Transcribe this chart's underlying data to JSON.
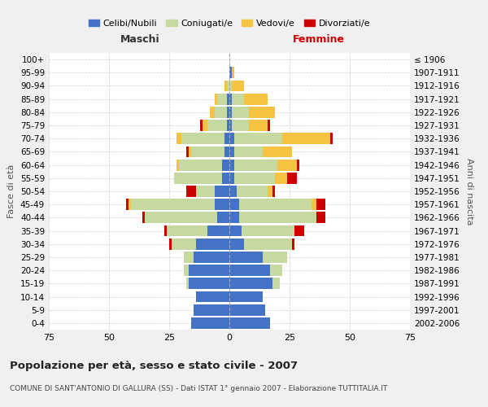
{
  "age_groups": [
    "0-4",
    "5-9",
    "10-14",
    "15-19",
    "20-24",
    "25-29",
    "30-34",
    "35-39",
    "40-44",
    "45-49",
    "50-54",
    "55-59",
    "60-64",
    "65-69",
    "70-74",
    "75-79",
    "80-84",
    "85-89",
    "90-94",
    "95-99",
    "100+"
  ],
  "birth_years": [
    "2002-2006",
    "1997-2001",
    "1992-1996",
    "1987-1991",
    "1982-1986",
    "1977-1981",
    "1972-1976",
    "1967-1971",
    "1962-1966",
    "1957-1961",
    "1952-1956",
    "1947-1951",
    "1942-1946",
    "1937-1941",
    "1932-1936",
    "1927-1931",
    "1922-1926",
    "1917-1921",
    "1912-1916",
    "1907-1911",
    "≤ 1906"
  ],
  "male": {
    "celibi": [
      16,
      15,
      14,
      17,
      17,
      15,
      14,
      9,
      5,
      6,
      6,
      3,
      3,
      2,
      2,
      1,
      1,
      1,
      0,
      0,
      0
    ],
    "coniugati": [
      0,
      0,
      0,
      1,
      2,
      4,
      10,
      17,
      30,
      35,
      8,
      20,
      18,
      14,
      18,
      8,
      5,
      4,
      1,
      0,
      0
    ],
    "vedovi": [
      0,
      0,
      0,
      0,
      0,
      0,
      0,
      0,
      0,
      1,
      0,
      0,
      1,
      1,
      2,
      2,
      2,
      1,
      1,
      0,
      0
    ],
    "divorziati": [
      0,
      0,
      0,
      0,
      0,
      0,
      1,
      1,
      1,
      1,
      4,
      0,
      0,
      1,
      0,
      1,
      0,
      0,
      0,
      0,
      0
    ]
  },
  "female": {
    "nubili": [
      17,
      15,
      14,
      18,
      17,
      14,
      6,
      5,
      4,
      4,
      3,
      2,
      2,
      2,
      2,
      1,
      1,
      1,
      0,
      1,
      0
    ],
    "coniugate": [
      0,
      0,
      0,
      3,
      5,
      10,
      20,
      22,
      32,
      30,
      13,
      17,
      18,
      12,
      20,
      7,
      7,
      5,
      1,
      0,
      0
    ],
    "vedove": [
      0,
      0,
      0,
      0,
      0,
      0,
      0,
      0,
      0,
      2,
      2,
      5,
      8,
      12,
      20,
      8,
      11,
      10,
      5,
      1,
      0
    ],
    "divorziate": [
      0,
      0,
      0,
      0,
      0,
      0,
      1,
      4,
      4,
      4,
      1,
      4,
      1,
      0,
      1,
      1,
      0,
      0,
      0,
      0,
      0
    ]
  },
  "colors": {
    "celibi": "#4472c4",
    "coniugati": "#c5d9a0",
    "vedovi": "#f5c242",
    "divorziati": "#cc0000"
  },
  "xlim": 75,
  "title": "Popolazione per età, sesso e stato civile - 2007",
  "subtitle": "COMUNE DI SANT'ANTONIO DI GALLURA (SS) - Dati ISTAT 1° gennaio 2007 - Elaborazione TUTTITALIA.IT",
  "ylabel_left": "Fasce di età",
  "ylabel_right": "Anni di nascita",
  "xlabel_left": "Maschi",
  "xlabel_right": "Femmine",
  "legend_labels": [
    "Celibi/Nubili",
    "Coniugati/e",
    "Vedovi/e",
    "Divorziati/e"
  ],
  "background_color": "#f0f0f0",
  "plot_bg": "#ffffff"
}
